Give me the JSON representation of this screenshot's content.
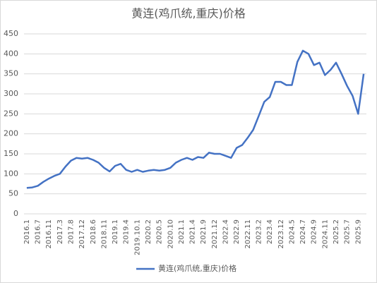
{
  "chart_data": {
    "type": "line",
    "title": "黄连(鸡爪统,重庆)价格",
    "categories": [
      "2016.1",
      null,
      "2016.7",
      null,
      "2016.11",
      null,
      "2017.3",
      null,
      "2017.8",
      null,
      "2017.12",
      null,
      "2018.6",
      null,
      "2018.11",
      null,
      "2019.1",
      null,
      "2019.4",
      null,
      "2019.10.1",
      null,
      "2020.2",
      null,
      "2020.5",
      null,
      "2020.10",
      null,
      "2021.1",
      null,
      "2021.4",
      null,
      "2021.9",
      null,
      "2021.12",
      null,
      "2022.4",
      null,
      "2022.9",
      null,
      "2022.11",
      null,
      "2023.2",
      null,
      "2023.4",
      null,
      "2023.12",
      null,
      "2024.5",
      null,
      "2024.7",
      null,
      "2024.9",
      null,
      "2024.11",
      null,
      "2025.2",
      null,
      "2025.7",
      null,
      "2025.9",
      null
    ],
    "series": [
      {
        "name": "黄连(鸡爪统,重庆)价格",
        "color": "#4472c4",
        "values": [
          65,
          66,
          70,
          80,
          88,
          95,
          100,
          118,
          133,
          140,
          138,
          140,
          135,
          128,
          115,
          106,
          120,
          125,
          110,
          105,
          110,
          105,
          108,
          110,
          108,
          110,
          115,
          128,
          135,
          140,
          135,
          142,
          140,
          153,
          150,
          150,
          145,
          140,
          165,
          172,
          190,
          210,
          245,
          280,
          292,
          330,
          330,
          322,
          322,
          380,
          408,
          400,
          372,
          378,
          347,
          360,
          378,
          350,
          320,
          295,
          250,
          350
        ]
      }
    ],
    "ylim": [
      0,
      450
    ],
    "yticks": [
      0,
      50,
      100,
      150,
      200,
      250,
      300,
      350,
      400,
      450
    ],
    "grid": true,
    "legend": "bottom"
  }
}
